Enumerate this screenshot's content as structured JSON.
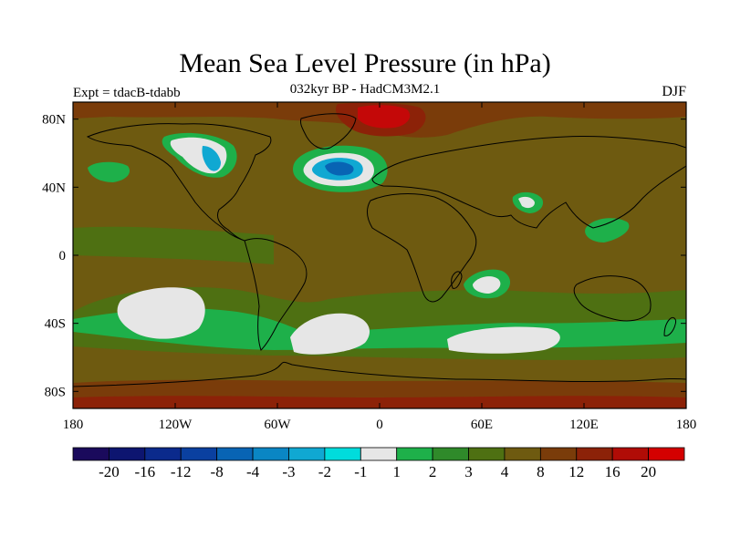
{
  "title": "Mean Sea Level Pressure (in hPa)",
  "subtitle": "032kyr BP - HadCM3M2.1",
  "expt_label": "Expt = tdacB-tdabb",
  "season": "DJF",
  "lat_ticks": [
    "80N",
    "40N",
    "0",
    "40S",
    "80S"
  ],
  "lon_ticks": [
    "180",
    "120W",
    "60W",
    "0",
    "60E",
    "120E",
    "180"
  ],
  "colorbar": {
    "labels": [
      "-20",
      "-16",
      "-12",
      "-8",
      "-4",
      "-3",
      "-2",
      "-1",
      "1",
      "2",
      "3",
      "4",
      "8",
      "12",
      "16",
      "20"
    ],
    "colors": [
      "#1a0a5c",
      "#0d1570",
      "#0b2a8c",
      "#0a40a0",
      "#0864b4",
      "#0a86c4",
      "#10a8d2",
      "#00dcdc",
      "#e6e6e6",
      "#1eb04a",
      "#2f8a2a",
      "#4e7012",
      "#6e5a10",
      "#7a3c0a",
      "#8c2208",
      "#b00c06",
      "#d40000"
    ]
  },
  "map_colors": {
    "base": "#6e5a10",
    "band_3": "#4e7012",
    "band_2": "#1eb04a",
    "band_1": "#e6e6e6",
    "band_m2": "#10a8d2",
    "band_m4": "#0864b4",
    "pos_12": "#7a3c0a",
    "pos_16": "#8c2208",
    "pos_20": "#c40808"
  }
}
